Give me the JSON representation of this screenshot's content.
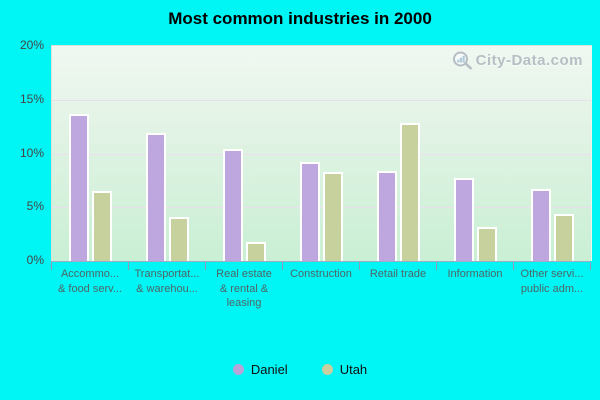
{
  "page": {
    "background_color": "#00F5F5"
  },
  "title": "Most common industries in 2000",
  "watermark": {
    "text": "City-Data.com",
    "icon": "magnifier-chart-icon"
  },
  "legend": {
    "items": [
      {
        "label": "Daniel",
        "color": "#B7A5D9"
      },
      {
        "label": "Utah",
        "color": "#C9CF9E"
      }
    ]
  },
  "chart_data": {
    "type": "bar",
    "title": "Most common industries in 2000",
    "categories": [
      {
        "lines": [
          "Accommo...",
          "& food serv..."
        ]
      },
      {
        "lines": [
          "Transportat...",
          "& warehou..."
        ]
      },
      {
        "lines": [
          "Real estate",
          "& rental &",
          "leasing"
        ]
      },
      {
        "lines": [
          "Construction"
        ]
      },
      {
        "lines": [
          "Retail trade"
        ]
      },
      {
        "lines": [
          "Information"
        ]
      },
      {
        "lines": [
          "Other servi...",
          "public adm..."
        ]
      }
    ],
    "series": [
      {
        "name": "Daniel",
        "color": "#BDA7DE",
        "border_color": "#FFFFFF",
        "values": [
          13.7,
          11.9,
          10.4,
          9.2,
          8.4,
          7.7,
          6.7
        ]
      },
      {
        "name": "Utah",
        "color": "#C7D19E",
        "border_color": "#FFFFFF",
        "values": [
          6.5,
          4.1,
          1.8,
          8.3,
          12.8,
          3.2,
          4.4
        ]
      }
    ],
    "ylim": [
      0,
      20
    ],
    "yticks": [
      {
        "value": 20,
        "label": "20%"
      },
      {
        "value": 15,
        "label": "15%"
      },
      {
        "value": 10,
        "label": "10%"
      },
      {
        "value": 5,
        "label": "5%"
      },
      {
        "value": 0,
        "label": "0%"
      }
    ],
    "grid": true,
    "legend_position": "bottom",
    "plot_background_top": "#F0F8F1",
    "plot_background_bottom": "#C9EFD4",
    "gridline_color": "#EADEEC"
  }
}
